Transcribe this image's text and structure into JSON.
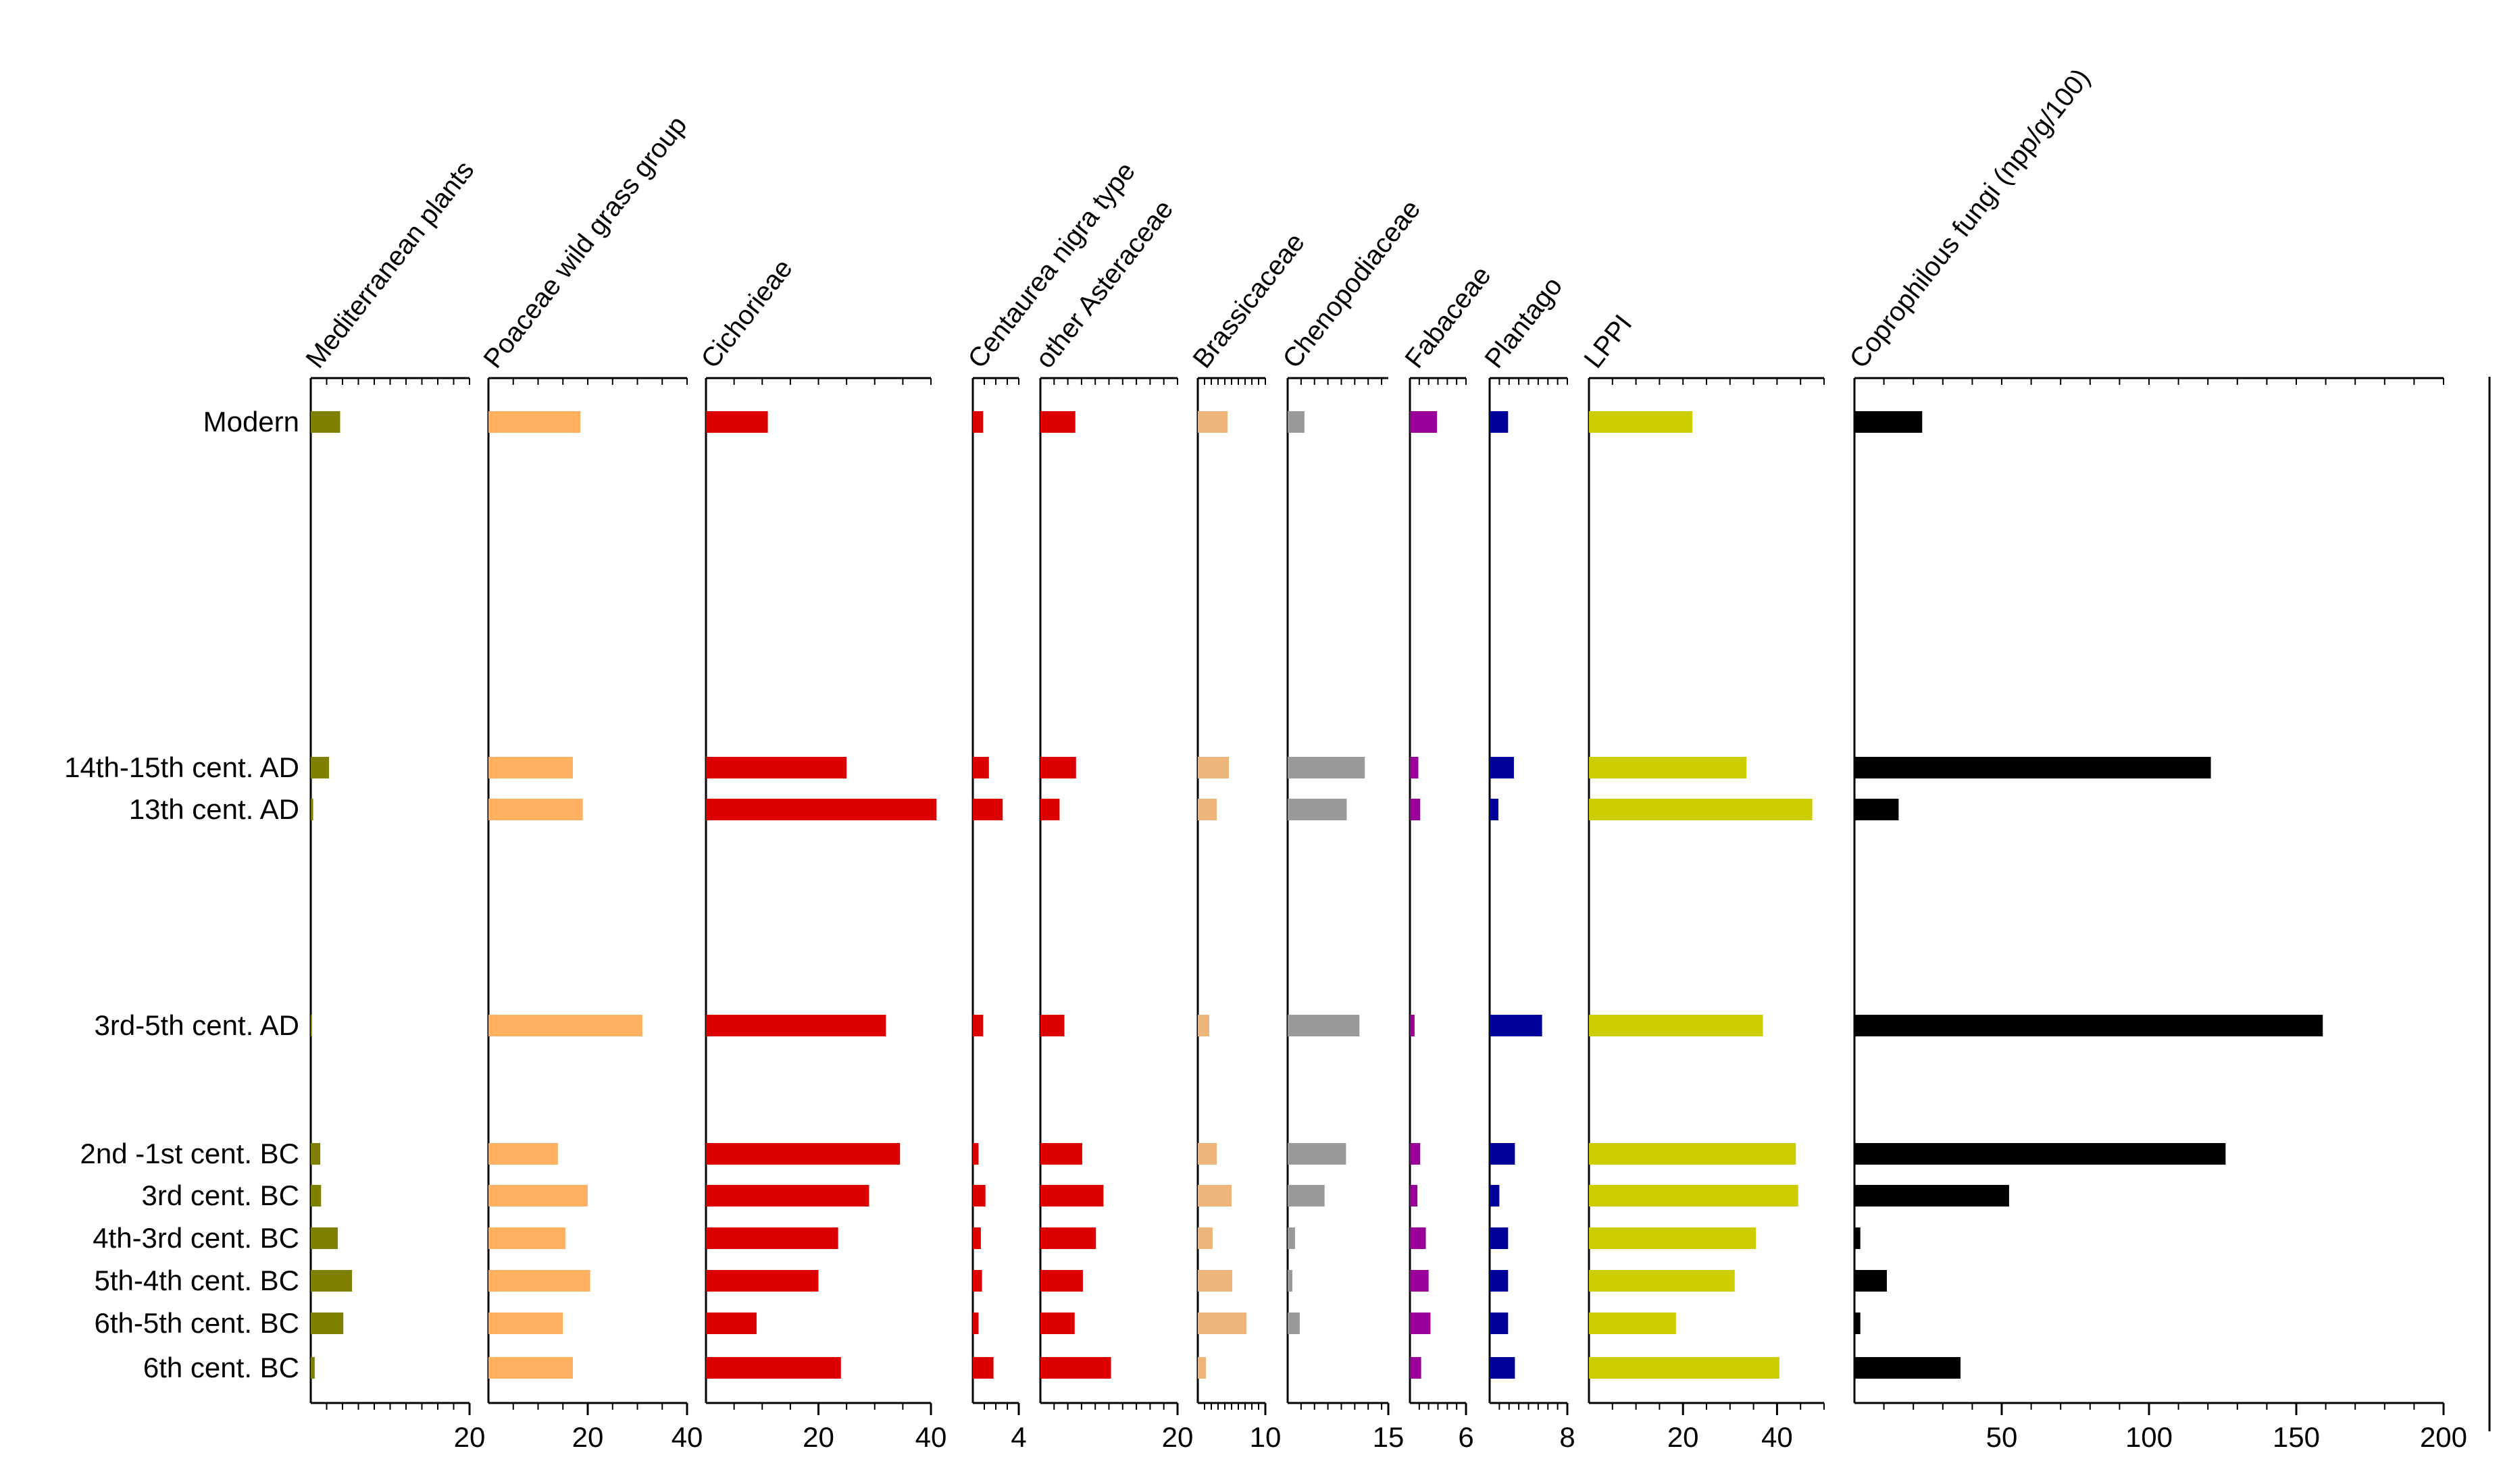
{
  "chart_data": {
    "type": "bar",
    "orientation": "horizontal",
    "categories": [
      "Modern",
      "14th-15th cent. AD",
      "13th cent. AD",
      "3rd-5th cent. AD",
      "2nd -1st cent. BC",
      "3rd cent. BC",
      "4th-3rd cent. BC",
      "5th-4th cent. BC",
      "6th-5th cent. BC",
      "6th cent. BC"
    ],
    "series": [
      {
        "name": "Mediterranean plants",
        "color": "#808000",
        "xlim": [
          0,
          20
        ],
        "ticks": [
          "20"
        ],
        "values": [
          3.7,
          2.3,
          0.3,
          0.1,
          1.2,
          1.3,
          3.4,
          5.2,
          4.1,
          0.5
        ]
      },
      {
        "name": "Poaceae wild grass group",
        "color": "#FFB060",
        "xlim": [
          0,
          40
        ],
        "ticks": [
          "20",
          "40"
        ],
        "values": [
          18.5,
          17.0,
          19.0,
          31.0,
          14.0,
          20.0,
          15.5,
          20.5,
          15.0,
          17.0
        ]
      },
      {
        "name": "Cichorieae",
        "color": "#DD0000",
        "xlim": [
          0,
          40
        ],
        "ticks": [
          "20",
          "40"
        ],
        "values": [
          11.0,
          25.0,
          41.0,
          32.0,
          34.5,
          29.0,
          23.5,
          20.0,
          9.0,
          24.0
        ]
      },
      {
        "name": "Centaurea nigra type",
        "color": "#DD0000",
        "xlim": [
          0,
          4
        ],
        "ticks": [
          "4"
        ],
        "values": [
          0.9,
          1.4,
          2.6,
          0.9,
          0.5,
          1.1,
          0.7,
          0.8,
          0.5,
          1.8
        ]
      },
      {
        "name": "other Asteraceae",
        "color": "#DD0000",
        "xlim": [
          0,
          20
        ],
        "ticks": [
          "20"
        ],
        "values": [
          5.1,
          5.2,
          2.8,
          3.5,
          6.1,
          9.2,
          8.1,
          6.2,
          5.0,
          10.3
        ]
      },
      {
        "name": "Brassicaceae",
        "color": "#EDB57A",
        "xlim": [
          0,
          10
        ],
        "ticks": [
          "10"
        ],
        "values": [
          4.4,
          4.6,
          2.8,
          1.7,
          2.8,
          5.0,
          2.2,
          5.1,
          7.2,
          1.2
        ]
      },
      {
        "name": "Chenopodiaceae",
        "color": "#999999",
        "xlim": [
          0,
          15
        ],
        "ticks": [
          "15"
        ],
        "values": [
          2.5,
          11.5,
          8.8,
          10.7,
          8.7,
          5.5,
          1.1,
          0.7,
          1.8,
          0
        ]
      },
      {
        "name": "Fabaceae",
        "color": "#990099",
        "xlim": [
          0,
          6
        ],
        "ticks": [
          "6"
        ],
        "values": [
          2.9,
          0.9,
          1.1,
          0.5,
          1.1,
          0.8,
          1.7,
          2.0,
          2.2,
          1.2
        ]
      },
      {
        "name": "Plantago",
        "color": "#000099",
        "xlim": [
          0,
          8
        ],
        "ticks": [
          "8"
        ],
        "values": [
          1.9,
          2.5,
          0.9,
          5.4,
          2.6,
          1.0,
          1.9,
          1.9,
          1.9,
          2.6
        ]
      },
      {
        "name": "LPPI",
        "color": "#CCCC00",
        "xlim": [
          0,
          50
        ],
        "ticks": [
          "20",
          "40"
        ],
        "values": [
          22,
          33.5,
          47.5,
          37,
          44,
          44.5,
          35.5,
          31,
          18.5,
          40.5
        ]
      },
      {
        "name": "Coprophilous fungi (npp/g/100)",
        "color": "#000000",
        "xlim": [
          0,
          200
        ],
        "ticks": [
          "50",
          "100",
          "150",
          "200"
        ],
        "values": [
          23,
          121,
          15,
          159,
          126,
          52.5,
          2,
          11,
          2,
          36
        ]
      }
    ]
  }
}
